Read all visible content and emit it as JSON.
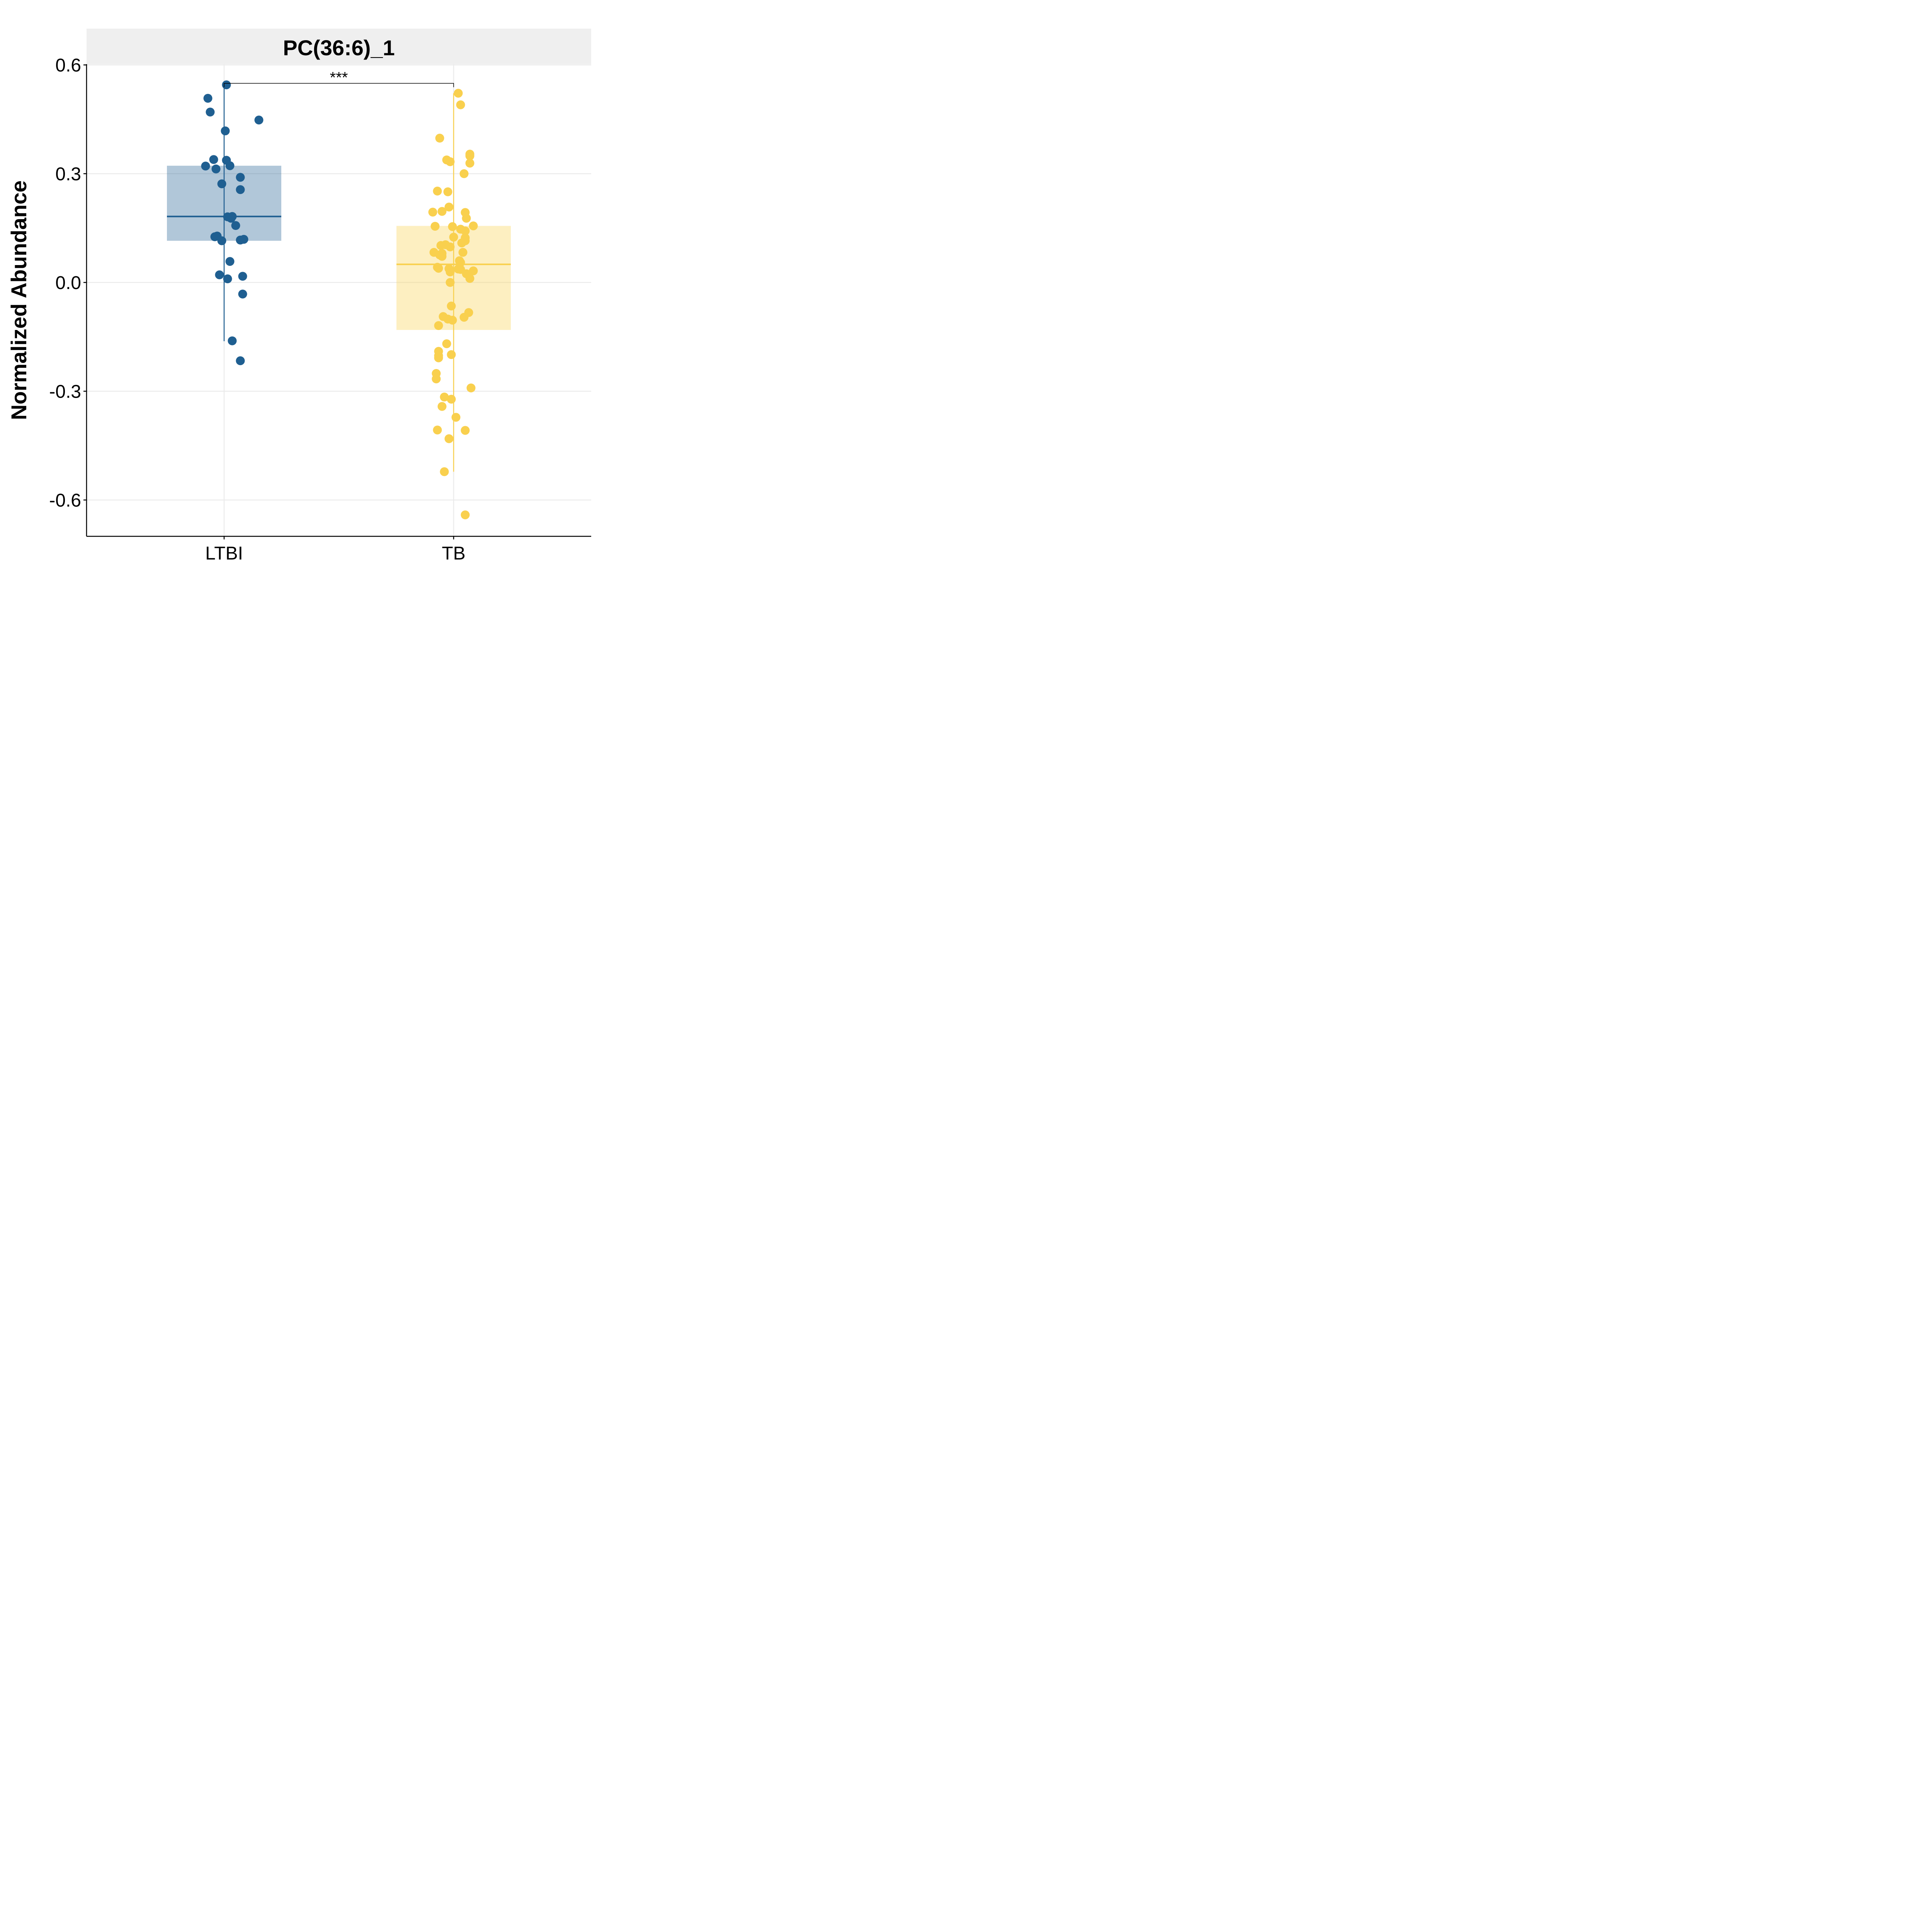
{
  "chart_data": {
    "type": "box",
    "panel_title": "PC(36:6)_1",
    "ylabel": "Normalized Abundance",
    "xlabel": "",
    "categories": [
      "LTBI",
      "TB"
    ],
    "ylim": [
      -0.7,
      0.6
    ],
    "yticks": [
      0.6,
      0.3,
      0.0,
      -0.3,
      -0.6
    ],
    "ytick_labels": [
      "0.6",
      "0.3",
      "0.0",
      "-0.3",
      "-0.6"
    ],
    "grid": true,
    "legend": "none",
    "significance": {
      "from": "LTBI",
      "to": "TB",
      "label": "***",
      "y": 0.545
    },
    "groups": [
      {
        "name": "LTBI",
        "color": "#1f5f91",
        "box": {
          "q1": 0.115,
          "median": 0.182,
          "q3": 0.322,
          "whisker_low": -0.162,
          "whisker_high": 0.545
        },
        "points": [
          {
            "x": 0.02,
            "y": 0.545
          },
          {
            "x": -0.14,
            "y": 0.508
          },
          {
            "x": -0.12,
            "y": 0.47
          },
          {
            "x": 0.3,
            "y": 0.448
          },
          {
            "x": 0.01,
            "y": 0.418
          },
          {
            "x": -0.09,
            "y": 0.339
          },
          {
            "x": 0.02,
            "y": 0.337
          },
          {
            "x": -0.16,
            "y": 0.321
          },
          {
            "x": 0.05,
            "y": 0.322
          },
          {
            "x": -0.07,
            "y": 0.313
          },
          {
            "x": 0.14,
            "y": 0.29
          },
          {
            "x": -0.02,
            "y": 0.272
          },
          {
            "x": 0.14,
            "y": 0.256
          },
          {
            "x": 0.03,
            "y": 0.181
          },
          {
            "x": 0.07,
            "y": 0.182
          },
          {
            "x": 0.06,
            "y": 0.177
          },
          {
            "x": 0.1,
            "y": 0.157
          },
          {
            "x": -0.06,
            "y": 0.128
          },
          {
            "x": -0.08,
            "y": 0.126
          },
          {
            "x": -0.02,
            "y": 0.115
          },
          {
            "x": 0.14,
            "y": 0.117
          },
          {
            "x": 0.17,
            "y": 0.119
          },
          {
            "x": 0.05,
            "y": 0.058
          },
          {
            "x": -0.04,
            "y": 0.021
          },
          {
            "x": 0.03,
            "y": 0.01
          },
          {
            "x": 0.16,
            "y": 0.017
          },
          {
            "x": 0.16,
            "y": -0.032
          },
          {
            "x": 0.07,
            "y": -0.161
          },
          {
            "x": 0.14,
            "y": -0.216
          }
        ]
      },
      {
        "name": "TB",
        "color": "#f9d04e",
        "box": {
          "q1": -0.131,
          "median": 0.05,
          "q3": 0.156,
          "whisker_low": -0.522,
          "whisker_high": 0.522
        },
        "points": [
          {
            "x": 0.04,
            "y": 0.522
          },
          {
            "x": 0.06,
            "y": 0.49
          },
          {
            "x": -0.12,
            "y": 0.398
          },
          {
            "x": 0.14,
            "y": 0.354
          },
          {
            "x": 0.14,
            "y": 0.349
          },
          {
            "x": -0.06,
            "y": 0.338
          },
          {
            "x": -0.03,
            "y": 0.333
          },
          {
            "x": 0.14,
            "y": 0.329
          },
          {
            "x": 0.09,
            "y": 0.3
          },
          {
            "x": -0.14,
            "y": 0.252
          },
          {
            "x": -0.05,
            "y": 0.25
          },
          {
            "x": -0.04,
            "y": 0.208
          },
          {
            "x": -0.18,
            "y": 0.194
          },
          {
            "x": -0.1,
            "y": 0.196
          },
          {
            "x": 0.1,
            "y": 0.193
          },
          {
            "x": 0.11,
            "y": 0.177
          },
          {
            "x": -0.16,
            "y": 0.155
          },
          {
            "x": -0.01,
            "y": 0.154
          },
          {
            "x": 0.17,
            "y": 0.156
          },
          {
            "x": 0.06,
            "y": 0.147
          },
          {
            "x": 0.1,
            "y": 0.142
          },
          {
            "x": 0.0,
            "y": 0.125
          },
          {
            "x": 0.1,
            "y": 0.123
          },
          {
            "x": 0.1,
            "y": 0.115
          },
          {
            "x": 0.07,
            "y": 0.109
          },
          {
            "x": -0.11,
            "y": 0.102
          },
          {
            "x": -0.07,
            "y": 0.104
          },
          {
            "x": -0.03,
            "y": 0.098
          },
          {
            "x": -0.17,
            "y": 0.083
          },
          {
            "x": -0.1,
            "y": 0.08
          },
          {
            "x": 0.08,
            "y": 0.083
          },
          {
            "x": -0.12,
            "y": 0.076
          },
          {
            "x": -0.1,
            "y": 0.072
          },
          {
            "x": 0.05,
            "y": 0.06
          },
          {
            "x": 0.06,
            "y": 0.055
          },
          {
            "x": -0.14,
            "y": 0.042
          },
          {
            "x": -0.13,
            "y": 0.039
          },
          {
            "x": -0.04,
            "y": 0.038
          },
          {
            "x": -0.03,
            "y": 0.029
          },
          {
            "x": 0.04,
            "y": 0.037
          },
          {
            "x": 0.06,
            "y": 0.036
          },
          {
            "x": 0.17,
            "y": 0.032
          },
          {
            "x": 0.11,
            "y": 0.024
          },
          {
            "x": 0.14,
            "y": 0.011
          },
          {
            "x": -0.03,
            "y": 0.0
          },
          {
            "x": -0.02,
            "y": -0.065
          },
          {
            "x": 0.13,
            "y": -0.083
          },
          {
            "x": -0.09,
            "y": -0.094
          },
          {
            "x": 0.09,
            "y": -0.096
          },
          {
            "x": -0.05,
            "y": -0.101
          },
          {
            "x": -0.01,
            "y": -0.104
          },
          {
            "x": -0.13,
            "y": -0.119
          },
          {
            "x": -0.06,
            "y": -0.169
          },
          {
            "x": -0.13,
            "y": -0.19
          },
          {
            "x": -0.02,
            "y": -0.199
          },
          {
            "x": -0.13,
            "y": -0.202
          },
          {
            "x": -0.13,
            "y": -0.208
          },
          {
            "x": -0.15,
            "y": -0.251
          },
          {
            "x": -0.15,
            "y": -0.266
          },
          {
            "x": 0.15,
            "y": -0.291
          },
          {
            "x": -0.08,
            "y": -0.316
          },
          {
            "x": -0.02,
            "y": -0.322
          },
          {
            "x": -0.1,
            "y": -0.342
          },
          {
            "x": 0.02,
            "y": -0.372
          },
          {
            "x": -0.14,
            "y": -0.407
          },
          {
            "x": 0.1,
            "y": -0.408
          },
          {
            "x": -0.04,
            "y": -0.431
          },
          {
            "x": -0.08,
            "y": -0.522
          },
          {
            "x": 0.1,
            "y": -0.641
          }
        ]
      }
    ]
  }
}
